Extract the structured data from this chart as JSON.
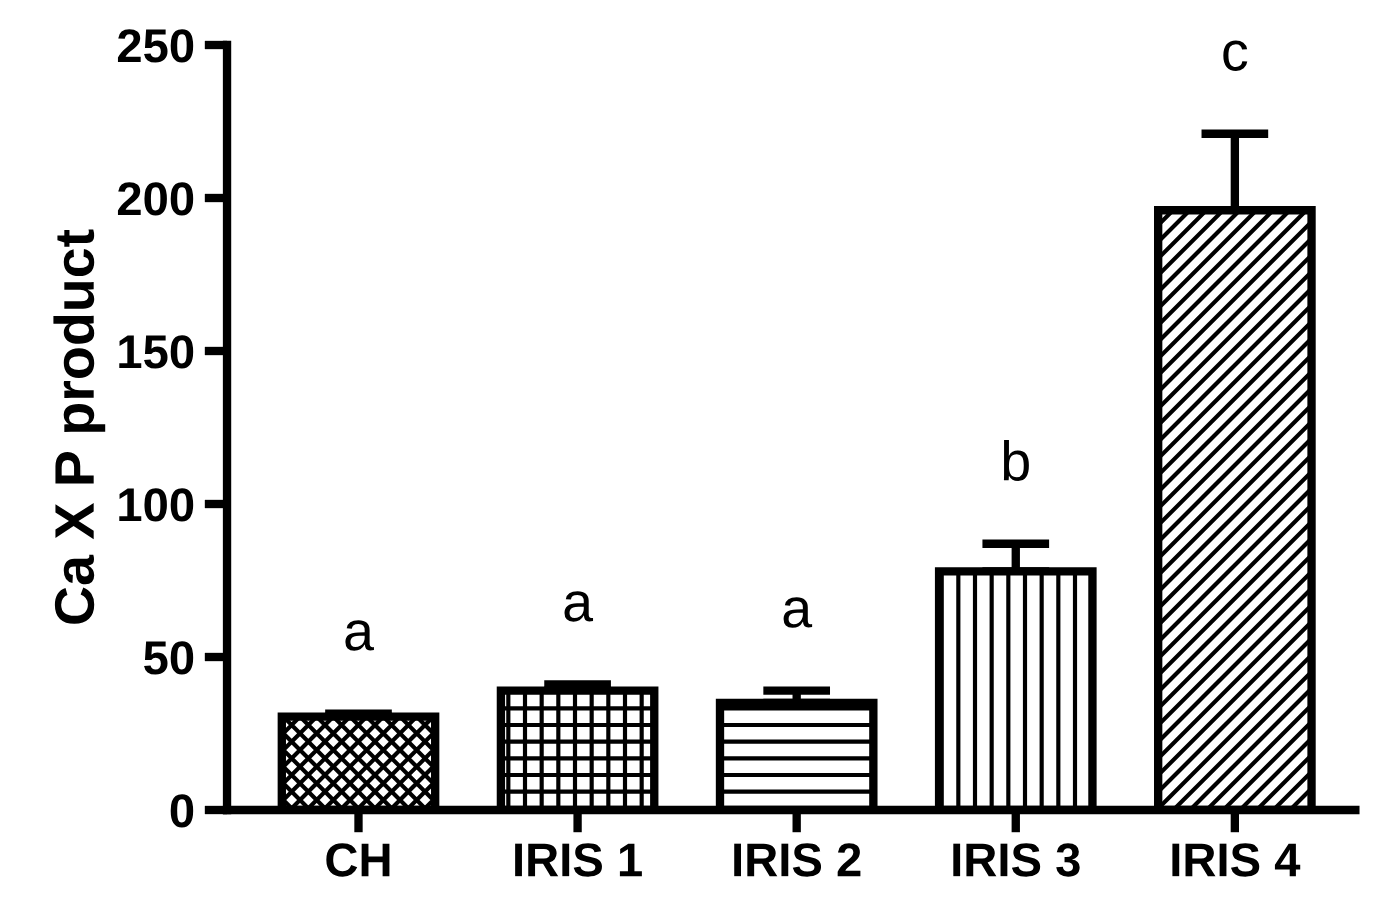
{
  "chart_data": {
    "type": "bar",
    "ylabel": "Ca X P product",
    "categories": [
      "CH",
      "IRIS 1",
      "IRIS 2",
      "IRIS 3",
      "IRIS 4"
    ],
    "values": [
      30.5,
      39,
      35,
      78,
      196
    ],
    "errors": [
      1,
      2,
      4,
      9,
      25
    ],
    "color": "#000000",
    "ylim": [
      0,
      250
    ],
    "yticks": [
      0,
      50,
      100,
      150,
      200,
      250
    ],
    "grid": false,
    "annotations": [
      "a",
      "a",
      "a",
      "b",
      "c"
    ]
  }
}
